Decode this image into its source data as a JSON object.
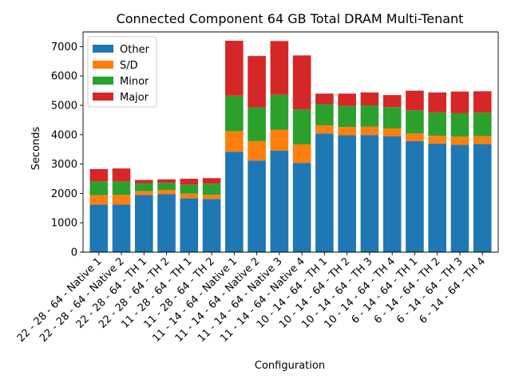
{
  "chart_data": {
    "type": "bar",
    "stacked": true,
    "title": "Connected Component 64 GB Total DRAM Multi-Tenant",
    "xlabel": "Configuration",
    "ylabel": "Seconds",
    "ylim": [
      0,
      7500
    ],
    "yticks": [
      0,
      1000,
      2000,
      3000,
      4000,
      5000,
      6000,
      7000
    ],
    "legend_position": "top-left",
    "grid": false,
    "categories": [
      "22 - 28 - 64 - Native 1",
      "22 - 28 - 64 - Native 2",
      "22 - 28 - 64 - TH 1",
      "22 - 28 - 64 - TH 2",
      "11 - 28 - 64 - TH 1",
      "11 - 28 - 64 - TH 2",
      "11 - 14 - 64 - Native 1",
      "11 - 14 - 64 - Native 2",
      "11 - 14 - 64 - Native 3",
      "11 - 14 - 64 - Native 4",
      "10 - 14 - 64 - TH 1",
      "10 - 14 - 64 - TH 2",
      "10 - 14 - 64 - TH 3",
      "10 - 14 - 64 - TH 4",
      "6 - 14 - 64 - TH 1",
      "6 - 14 - 64 - TH 2",
      "6 - 14 - 64 - TH 3",
      "6 - 14 - 64 - TH 4"
    ],
    "series": [
      {
        "name": "Other",
        "color": "#1f77b4",
        "values": [
          1620,
          1620,
          1950,
          1970,
          1840,
          1810,
          3420,
          3120,
          3460,
          3040,
          4040,
          3980,
          3990,
          3940,
          3780,
          3700,
          3660,
          3680
        ]
      },
      {
        "name": "S/D",
        "color": "#ff7f0e",
        "values": [
          320,
          330,
          130,
          150,
          150,
          140,
          700,
          660,
          710,
          630,
          280,
          280,
          280,
          270,
          260,
          260,
          270,
          270
        ]
      },
      {
        "name": "Minor",
        "color": "#2ca02c",
        "values": [
          470,
          460,
          270,
          240,
          310,
          380,
          1210,
          1150,
          1190,
          1190,
          720,
          720,
          730,
          730,
          790,
          800,
          800,
          800
        ]
      },
      {
        "name": "Major",
        "color": "#d62728",
        "values": [
          420,
          440,
          110,
          120,
          200,
          190,
          1870,
          1750,
          1830,
          1840,
          360,
          420,
          440,
          410,
          670,
          680,
          740,
          730
        ]
      }
    ]
  }
}
